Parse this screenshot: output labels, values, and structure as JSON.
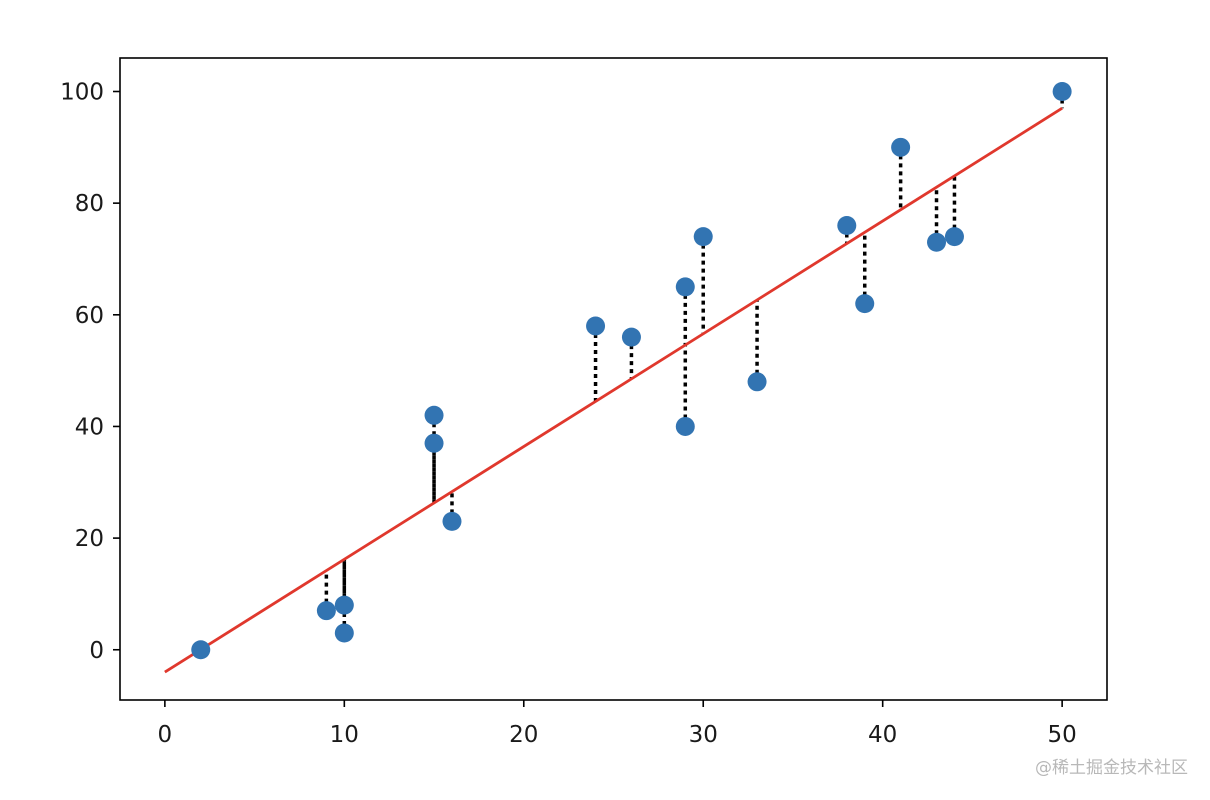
{
  "chart_data": {
    "type": "scatter",
    "title": "",
    "xlabel": "",
    "ylabel": "",
    "xlim": [
      -2.5,
      52.5
    ],
    "ylim": [
      -9,
      106
    ],
    "xticks": [
      0,
      10,
      20,
      30,
      40,
      50
    ],
    "yticks": [
      0,
      20,
      40,
      60,
      80,
      100
    ],
    "grid": false,
    "points": [
      {
        "x": 2,
        "y": 0
      },
      {
        "x": 9,
        "y": 7
      },
      {
        "x": 10,
        "y": 8
      },
      {
        "x": 10,
        "y": 3
      },
      {
        "x": 15,
        "y": 42
      },
      {
        "x": 15,
        "y": 37
      },
      {
        "x": 16,
        "y": 23
      },
      {
        "x": 24,
        "y": 58
      },
      {
        "x": 26,
        "y": 56
      },
      {
        "x": 29,
        "y": 65
      },
      {
        "x": 29,
        "y": 40
      },
      {
        "x": 30,
        "y": 74
      },
      {
        "x": 33,
        "y": 48
      },
      {
        "x": 38,
        "y": 76
      },
      {
        "x": 39,
        "y": 62
      },
      {
        "x": 41,
        "y": 90
      },
      {
        "x": 43,
        "y": 73
      },
      {
        "x": 44,
        "y": 74
      },
      {
        "x": 50,
        "y": 100
      }
    ],
    "fit_line": {
      "x_start": 0,
      "x_end": 50,
      "slope": 2.02,
      "intercept": -4
    },
    "residuals": "dotted vertical segments from each point to the fit line",
    "colors": {
      "points": "#3274b2",
      "fit_line": "#e0382d",
      "residuals": "#000000",
      "axes": "#000000"
    }
  },
  "watermark": "@稀土掘金技术社区"
}
